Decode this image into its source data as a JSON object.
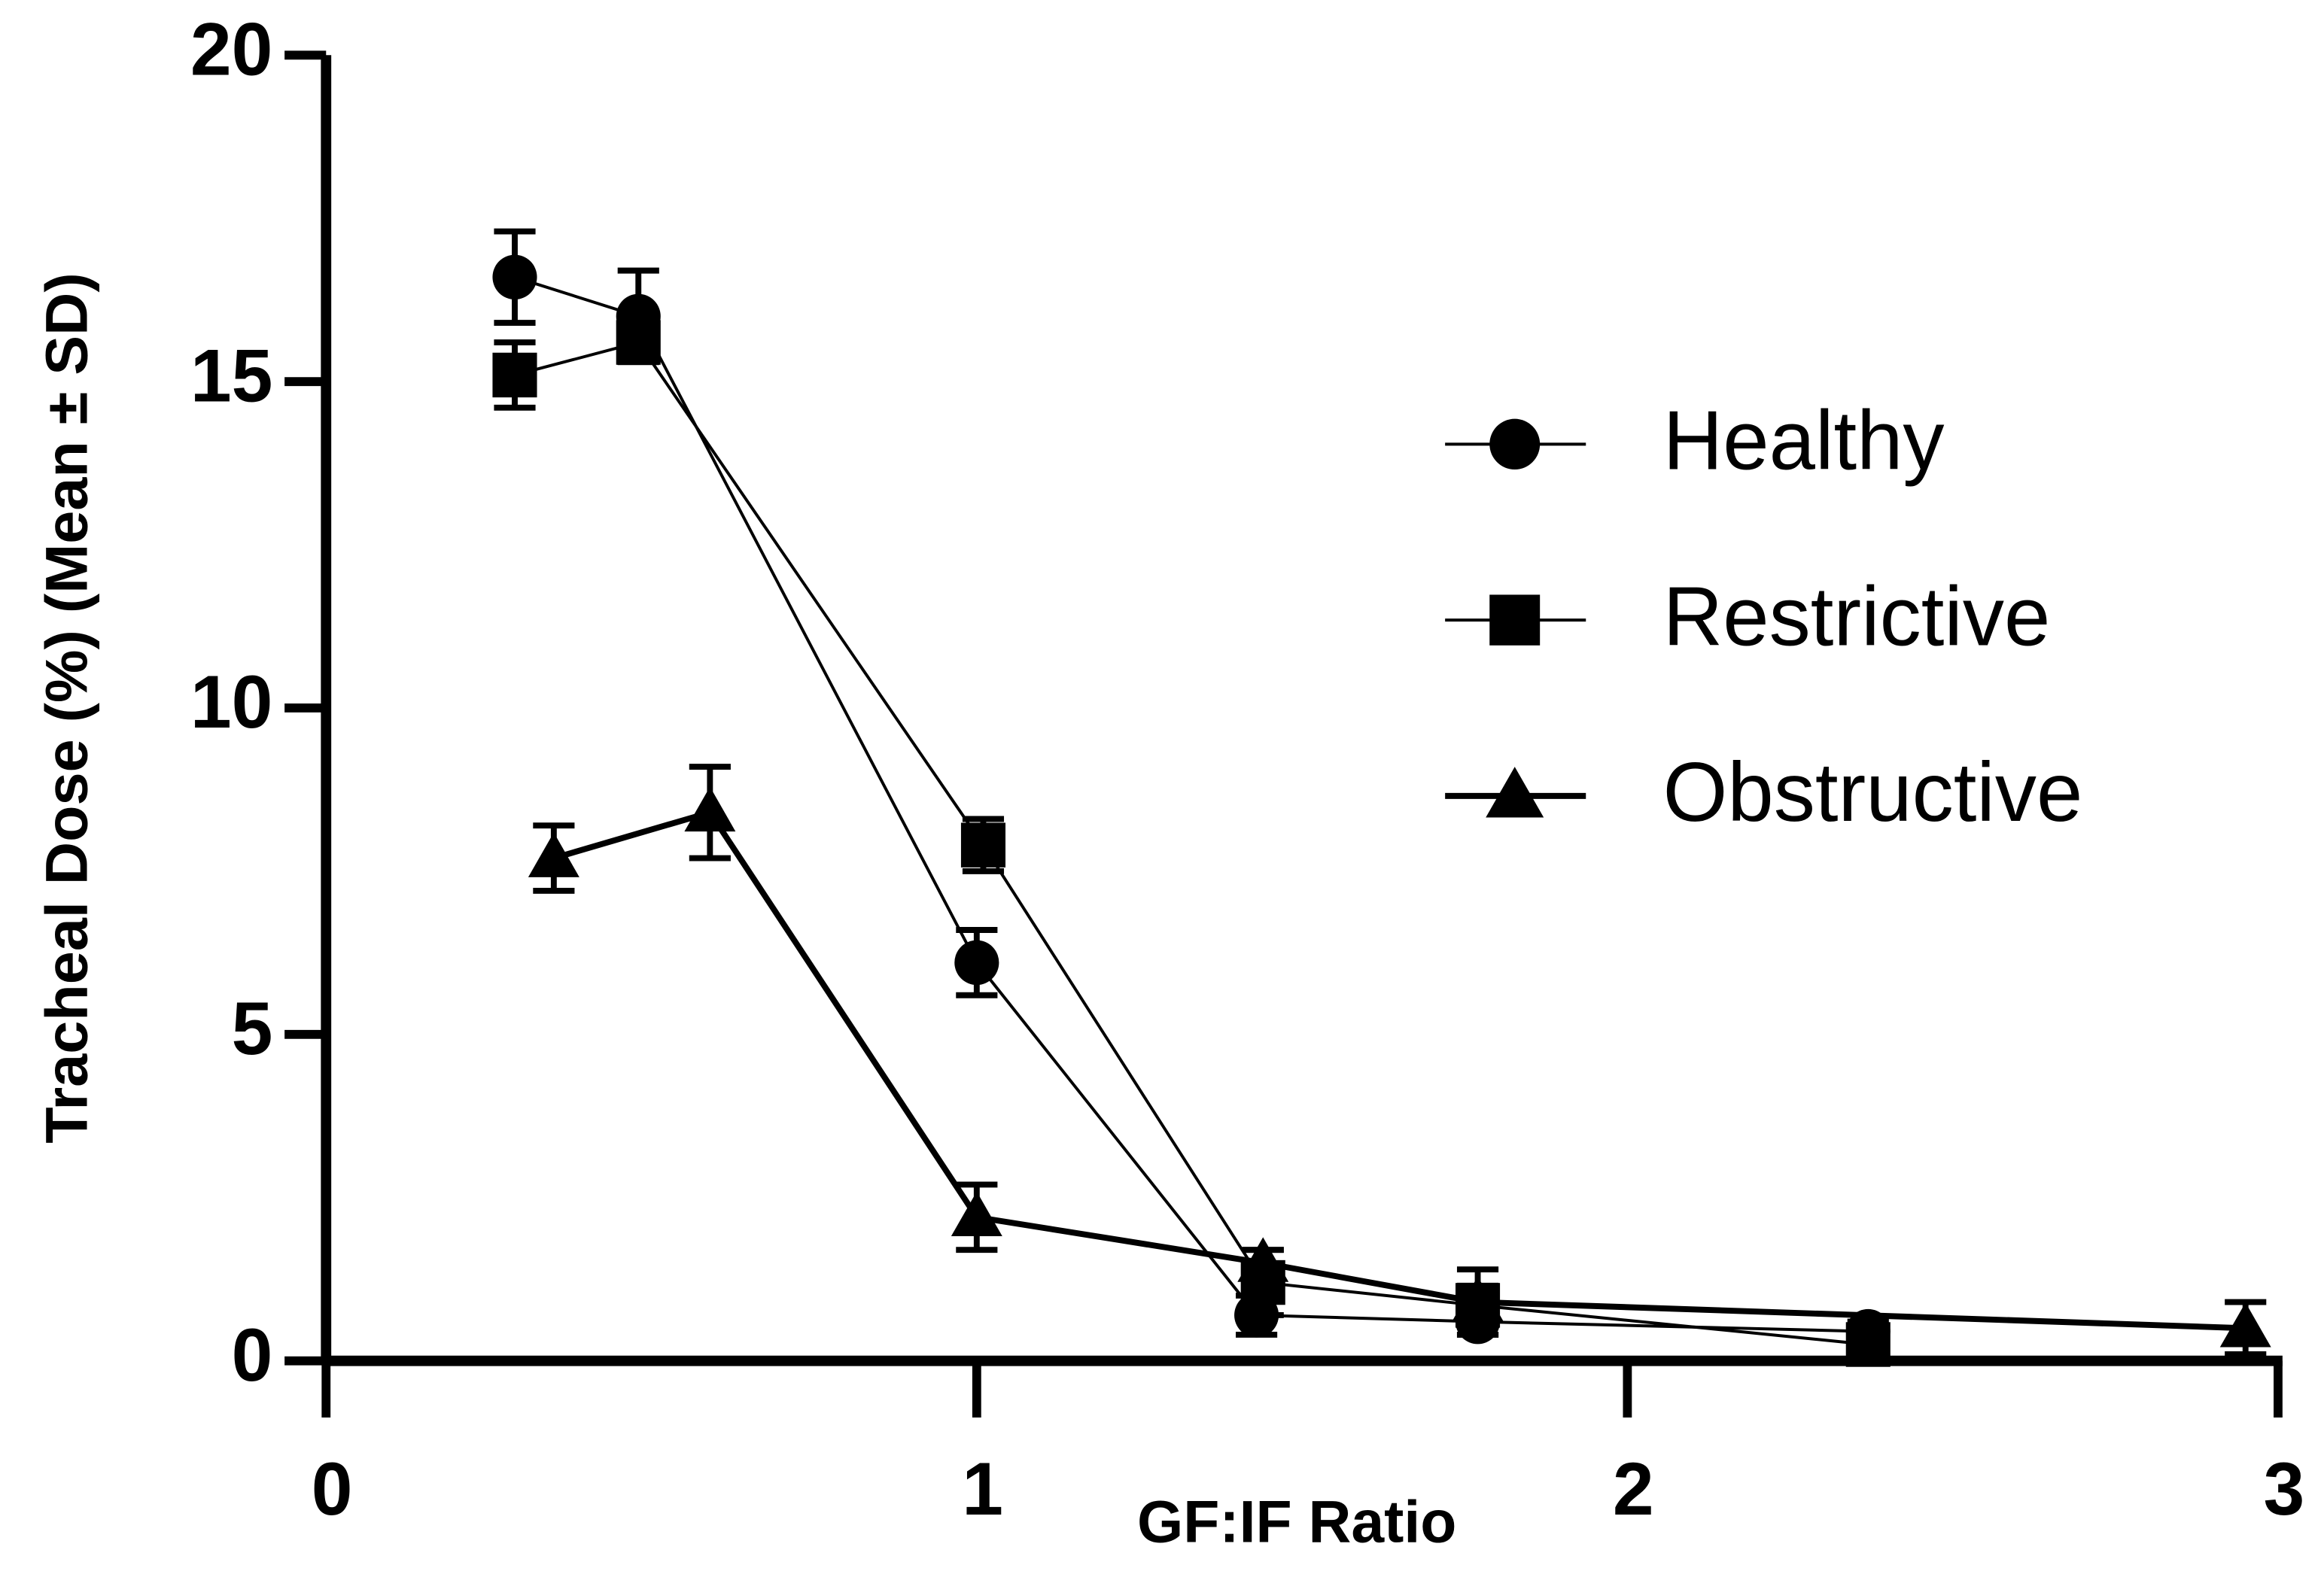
{
  "chart_data": {
    "type": "line",
    "xlabel": "GF:IF Ratio",
    "ylabel": "Tracheal Dose (%) (Mean ± SD)",
    "xlim": [
      0,
      3
    ],
    "xticks": [
      0,
      1,
      2,
      3
    ],
    "ylim": [
      0,
      20
    ],
    "yticks": [
      0,
      5,
      10,
      15,
      20
    ],
    "legend": "upper right",
    "series": [
      {
        "name": "Healthy",
        "color": "#000000",
        "marker": "circle",
        "x": [
          0.29,
          0.48,
          1.0,
          1.43,
          1.77,
          2.37
        ],
        "values": [
          16.6,
          16.0,
          6.1,
          0.7,
          0.6,
          0.45
        ],
        "errors": [
          0.7,
          0.7,
          0.5,
          0.3,
          0.2,
          0.15
        ]
      },
      {
        "name": "Restrictive",
        "color": "#000000",
        "marker": "square",
        "x": [
          0.29,
          0.48,
          1.01,
          1.44,
          1.77,
          2.37
        ],
        "values": [
          15.1,
          15.6,
          7.9,
          1.2,
          0.85,
          0.25
        ],
        "errors": [
          0.5,
          0.3,
          0.4,
          0.5,
          0.3,
          0.2
        ]
      },
      {
        "name": "Obstructive",
        "color": "#000000",
        "marker": "triangle",
        "x": [
          0.35,
          0.59,
          1.0,
          1.44,
          1.77,
          2.95
        ],
        "values": [
          7.7,
          8.4,
          2.2,
          1.5,
          0.9,
          0.5
        ],
        "errors": [
          0.5,
          0.7,
          0.5,
          0.2,
          0.5,
          0.4
        ]
      }
    ]
  }
}
